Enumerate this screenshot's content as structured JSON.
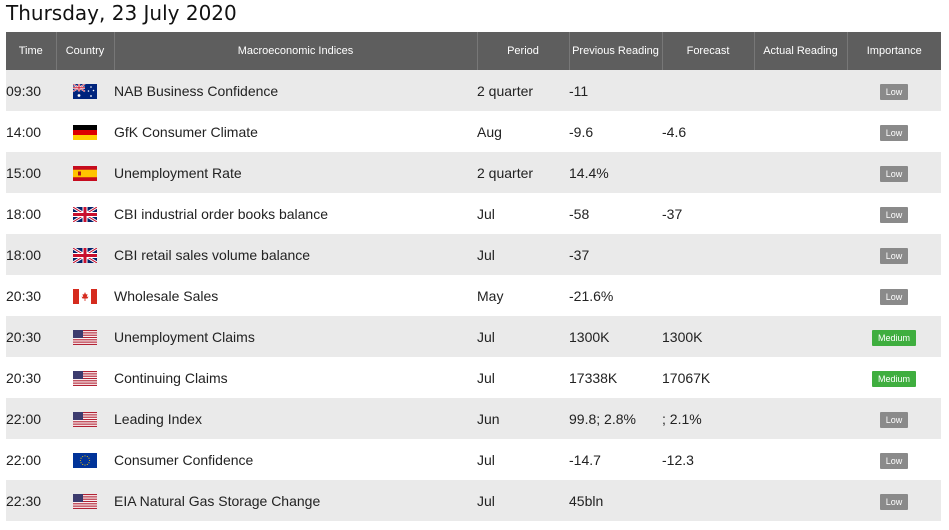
{
  "date_heading": "Thursday, 23 July 2020",
  "columns": {
    "time": "Time",
    "country": "Country",
    "indices": "Macroeconomic Indices",
    "period": "Period",
    "previous": "Previous Reading",
    "forecast": "Forecast",
    "actual": "Actual Reading",
    "importance": "Importance"
  },
  "colors": {
    "header_bg": "#5e5e5e",
    "row_alt_bg": "#eaeaea",
    "low_badge": "#8a8a8a",
    "medium_badge": "#3fae3f"
  },
  "rows": [
    {
      "time": "09:30",
      "flag": "australia-flag-icon",
      "index": "NAB Business Confidence",
      "period": "2 quarter",
      "previous": "-11",
      "forecast": "",
      "actual": "",
      "importance": "Low"
    },
    {
      "time": "14:00",
      "flag": "germany-flag-icon",
      "index": "GfK Consumer Climate",
      "period": "Aug",
      "previous": "-9.6",
      "forecast": "-4.6",
      "actual": "",
      "importance": "Low"
    },
    {
      "time": "15:00",
      "flag": "spain-flag-icon",
      "index": "Unemployment Rate",
      "period": "2 quarter",
      "previous": "14.4%",
      "forecast": "",
      "actual": "",
      "importance": "Low"
    },
    {
      "time": "18:00",
      "flag": "uk-flag-icon",
      "index": "CBI industrial order books balance",
      "period": "Jul",
      "previous": "-58",
      "forecast": "-37",
      "actual": "",
      "importance": "Low"
    },
    {
      "time": "18:00",
      "flag": "uk-flag-icon",
      "index": "CBI retail sales volume balance",
      "period": "Jul",
      "previous": "-37",
      "forecast": "",
      "actual": "",
      "importance": "Low"
    },
    {
      "time": "20:30",
      "flag": "canada-flag-icon",
      "index": "Wholesale Sales",
      "period": "May",
      "previous": "-21.6%",
      "forecast": "",
      "actual": "",
      "importance": "Low"
    },
    {
      "time": "20:30",
      "flag": "usa-flag-icon",
      "index": "Unemployment Claims",
      "period": "Jul",
      "previous": "1300K",
      "forecast": "1300K",
      "actual": "",
      "importance": "Medium"
    },
    {
      "time": "20:30",
      "flag": "usa-flag-icon",
      "index": "Continuing Claims",
      "period": "Jul",
      "previous": "17338K",
      "forecast": "17067K",
      "actual": "",
      "importance": "Medium"
    },
    {
      "time": "22:00",
      "flag": "usa-flag-icon",
      "index": "Leading Index",
      "period": "Jun",
      "previous": "99.8; 2.8%",
      "forecast": "; 2.1%",
      "actual": "",
      "importance": "Low"
    },
    {
      "time": "22:00",
      "flag": "eu-flag-icon",
      "index": "Consumer Confidence",
      "period": "Jul",
      "previous": "-14.7",
      "forecast": "-12.3",
      "actual": "",
      "importance": "Low"
    },
    {
      "time": "22:30",
      "flag": "usa-flag-icon",
      "index": "EIA Natural Gas Storage Change",
      "period": "Jul",
      "previous": "45bln",
      "forecast": "",
      "actual": "",
      "importance": "Low"
    }
  ]
}
